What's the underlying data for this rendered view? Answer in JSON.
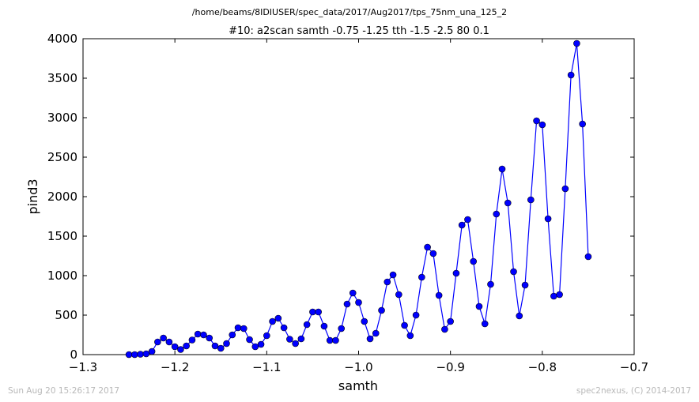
{
  "chart_data": {
    "type": "line",
    "suptitle": "/home/beams/8IDIUSER/spec_data/2017/Aug2017/tps_75nm_una_125_2",
    "title": "#10: a2scan  samth -0.75 -1.25  tth -1.5 -2.5  80 0.1",
    "xlabel": "samth",
    "ylabel": "pind3",
    "xlim": [
      -1.3,
      -0.7
    ],
    "ylim": [
      0,
      4000
    ],
    "xticks": [
      -1.3,
      -1.2,
      -1.1,
      -1.0,
      -0.9,
      -0.8,
      -0.7
    ],
    "xtick_labels": [
      "−1.3",
      "−1.2",
      "−1.1",
      "−1.0",
      "−0.9",
      "−0.8",
      "−0.7"
    ],
    "yticks": [
      0,
      500,
      1000,
      1500,
      2000,
      2500,
      3000,
      3500,
      4000
    ],
    "ytick_labels": [
      "0",
      "500",
      "1000",
      "1500",
      "2000",
      "2500",
      "3000",
      "3500",
      "4000"
    ],
    "grid": false,
    "legend": "none",
    "series": [
      {
        "color": "#0000ff",
        "marker": "circle",
        "x": [
          -1.25,
          -1.24375,
          -1.2375,
          -1.23125,
          -1.225,
          -1.21875,
          -1.2125,
          -1.20625,
          -1.2,
          -1.19375,
          -1.1875,
          -1.18125,
          -1.175,
          -1.16875,
          -1.1625,
          -1.15625,
          -1.15,
          -1.14375,
          -1.1375,
          -1.13125,
          -1.125,
          -1.11875,
          -1.1125,
          -1.10625,
          -1.1,
          -1.09375,
          -1.0875,
          -1.08125,
          -1.075,
          -1.06875,
          -1.0625,
          -1.05625,
          -1.05,
          -1.04375,
          -1.0375,
          -1.03125,
          -1.025,
          -1.01875,
          -1.0125,
          -1.00625,
          -1.0,
          -0.99375,
          -0.9875,
          -0.98125,
          -0.975,
          -0.96875,
          -0.9625,
          -0.95625,
          -0.95,
          -0.94375,
          -0.9375,
          -0.93125,
          -0.925,
          -0.91875,
          -0.9125,
          -0.90625,
          -0.9,
          -0.89375,
          -0.8875,
          -0.88125,
          -0.875,
          -0.86875,
          -0.8625,
          -0.85625,
          -0.85,
          -0.84375,
          -0.8375,
          -0.83125,
          -0.825,
          -0.81875,
          -0.8125,
          -0.80625,
          -0.8,
          -0.79375,
          -0.7875,
          -0.78125,
          -0.775,
          -0.76875,
          -0.7625,
          -0.75625,
          -0.75
        ],
        "y": [
          0,
          0,
          5,
          10,
          40,
          160,
          210,
          160,
          100,
          65,
          110,
          185,
          260,
          250,
          210,
          110,
          80,
          140,
          250,
          340,
          330,
          190,
          100,
          130,
          240,
          420,
          460,
          340,
          195,
          140,
          200,
          380,
          540,
          540,
          360,
          180,
          180,
          330,
          640,
          780,
          660,
          420,
          200,
          270,
          560,
          920,
          1010,
          760,
          370,
          240,
          500,
          980,
          1360,
          1280,
          750,
          320,
          420,
          1030,
          1640,
          1710,
          1180,
          610,
          390,
          890,
          1780,
          2350,
          1920,
          1050,
          490,
          880,
          1960,
          2960,
          2910,
          1720,
          740,
          760,
          2100,
          3540,
          3940,
          2920,
          1240
        ]
      }
    ]
  },
  "footer": {
    "timestamp": "Sun Aug 20 15:26:17 2017",
    "credit": "spec2nexus, (C) 2014-2017"
  }
}
